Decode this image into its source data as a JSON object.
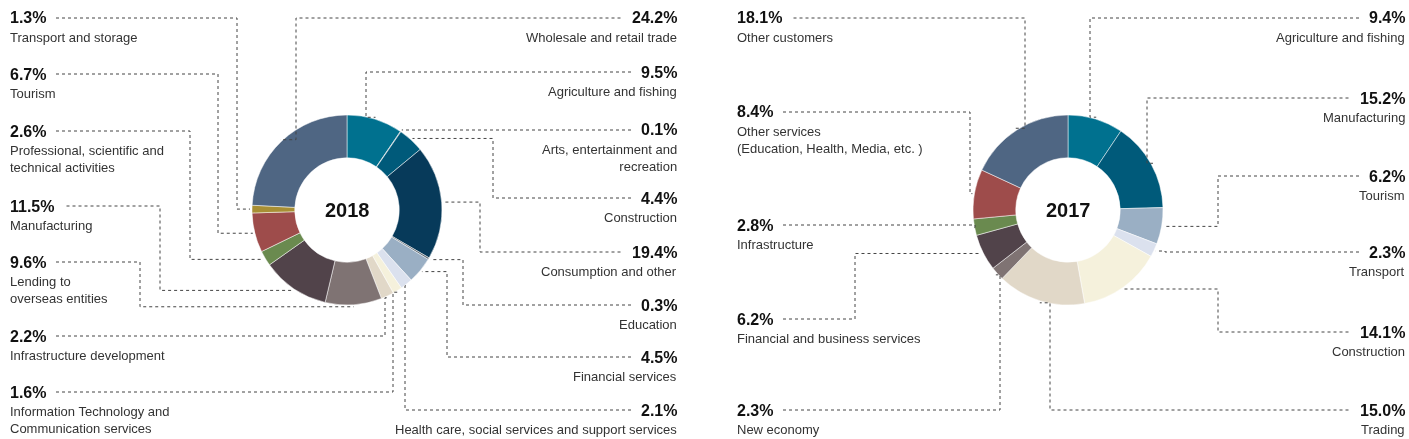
{
  "chart_data": [
    {
      "type": "donut",
      "title": "2018",
      "categories": [
        "Agriculture and fishing",
        "Arts, entertainment and recreation",
        "Construction",
        "Consumption and other",
        "Education",
        "Financial services",
        "Health care, social services and support services",
        "Information Technology and Communication services",
        "Infrastructure development",
        "Lending to overseas entities",
        "Manufacturing",
        "Professional, scientific and technical activities",
        "Tourism",
        "Transport and storage",
        "Wholesale and retail trade"
      ],
      "values": [
        9.5,
        0.1,
        4.4,
        19.4,
        0.3,
        4.5,
        2.1,
        1.6,
        2.2,
        9.6,
        11.5,
        2.6,
        6.7,
        1.3,
        24.2
      ],
      "colors": [
        "#00718f",
        "#4a5a66",
        "#005a7a",
        "#073a5a",
        "#5a6670",
        "#9aafc4",
        "#dbe1ee",
        "#f5f1dc",
        "#e1d8c8",
        "#7f7373",
        "#51434a",
        "#6a8a4f",
        "#9e4c4b",
        "#a88f34",
        "#4f6683"
      ],
      "value_labels": [
        "9.5%",
        "0.1%",
        "4.4%",
        "19.4%",
        "0.3%",
        "4.5%",
        "2.1%",
        "1.6%",
        "2.2%",
        "9.6%",
        "11.5%",
        "2.6%",
        "6.7%",
        "1.3%",
        "24.2%"
      ]
    },
    {
      "type": "donut",
      "title": "2017",
      "categories": [
        "Agriculture and fishing",
        "Manufacturing",
        "Tourism",
        "Transport",
        "Construction",
        "Trading",
        "New economy",
        "Financial and business services",
        "Infrastructure",
        "Other services (Education, Health, Media, etc. )",
        "Other customers"
      ],
      "values": [
        9.4,
        15.2,
        6.2,
        2.3,
        14.1,
        15.0,
        2.3,
        6.2,
        2.8,
        8.4,
        18.1
      ],
      "colors": [
        "#00718f",
        "#005a7a",
        "#9aafc4",
        "#dbe1ee",
        "#f5f1dc",
        "#e1d8c8",
        "#7f7373",
        "#51434a",
        "#6a8a4f",
        "#9e4c4b",
        "#4f6683"
      ],
      "value_labels": [
        "9.4%",
        "15.2%",
        "6.2%",
        "2.3%",
        "14.1%",
        "15.0%",
        "2.3%",
        "6.2%",
        "2.8%",
        "8.4%",
        "18.1%"
      ]
    }
  ]
}
